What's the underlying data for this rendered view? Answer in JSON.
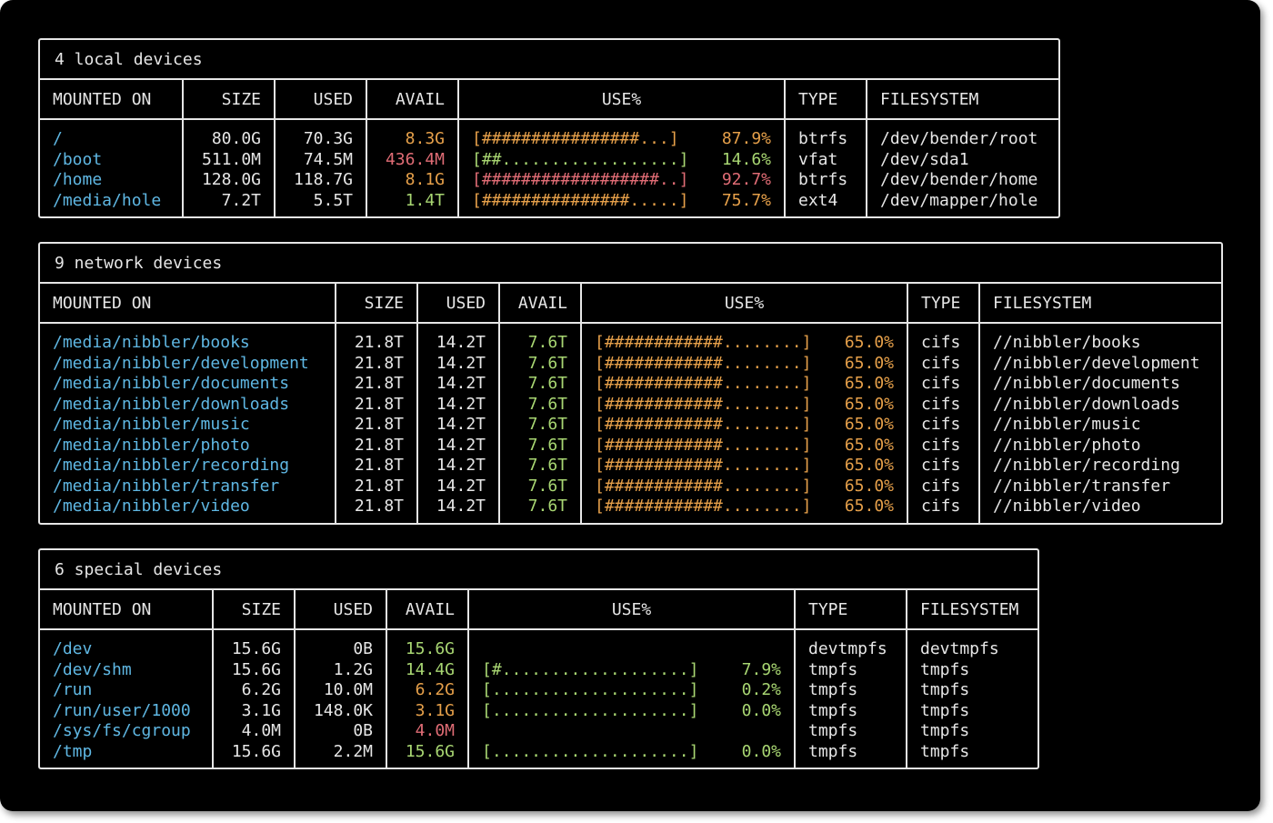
{
  "colors": {
    "background": "#000000",
    "border": "#e6e6e6",
    "mount": "#5fb7e3",
    "ok": "#a8d672",
    "warn": "#e6a04a",
    "critical": "#e06c75"
  },
  "columns": [
    "MOUNTED ON",
    "SIZE",
    "USED",
    "AVAIL",
    "USE%",
    "TYPE",
    "FILESYSTEM"
  ],
  "panels": [
    {
      "title": "4 local devices",
      "rows": [
        {
          "mount": "/",
          "size": "80.0G",
          "used": "70.3G",
          "avail": "8.3G",
          "avail_color": "orange",
          "bar": "[################...]",
          "bar_color": "orange",
          "pct": "87.9%",
          "type": "btrfs",
          "fs": "/dev/bender/root"
        },
        {
          "mount": "/boot",
          "size": "511.0M",
          "used": "74.5M",
          "avail": "436.4M",
          "avail_color": "red",
          "bar": "[##..................]",
          "bar_color": "green",
          "pct": "14.6%",
          "type": "vfat",
          "fs": "/dev/sda1"
        },
        {
          "mount": "/home",
          "size": "128.0G",
          "used": "118.7G",
          "avail": "8.1G",
          "avail_color": "orange",
          "bar": "[##################..]",
          "bar_color": "red",
          "pct": "92.7%",
          "type": "btrfs",
          "fs": "/dev/bender/home"
        },
        {
          "mount": "/media/hole",
          "size": "7.2T",
          "used": "5.5T",
          "avail": "1.4T",
          "avail_color": "green",
          "bar": "[###############.....]",
          "bar_color": "orange",
          "pct": "75.7%",
          "type": "ext4",
          "fs": "/dev/mapper/hole"
        }
      ]
    },
    {
      "title": "9 network devices",
      "rows": [
        {
          "mount": "/media/nibbler/books",
          "size": "21.8T",
          "used": "14.2T",
          "avail": "7.6T",
          "avail_color": "green",
          "bar": "[############........]",
          "bar_color": "orange",
          "pct": "65.0%",
          "type": "cifs",
          "fs": "//nibbler/books"
        },
        {
          "mount": "/media/nibbler/development",
          "size": "21.8T",
          "used": "14.2T",
          "avail": "7.6T",
          "avail_color": "green",
          "bar": "[############........]",
          "bar_color": "orange",
          "pct": "65.0%",
          "type": "cifs",
          "fs": "//nibbler/development"
        },
        {
          "mount": "/media/nibbler/documents",
          "size": "21.8T",
          "used": "14.2T",
          "avail": "7.6T",
          "avail_color": "green",
          "bar": "[############........]",
          "bar_color": "orange",
          "pct": "65.0%",
          "type": "cifs",
          "fs": "//nibbler/documents"
        },
        {
          "mount": "/media/nibbler/downloads",
          "size": "21.8T",
          "used": "14.2T",
          "avail": "7.6T",
          "avail_color": "green",
          "bar": "[############........]",
          "bar_color": "orange",
          "pct": "65.0%",
          "type": "cifs",
          "fs": "//nibbler/downloads"
        },
        {
          "mount": "/media/nibbler/music",
          "size": "21.8T",
          "used": "14.2T",
          "avail": "7.6T",
          "avail_color": "green",
          "bar": "[############........]",
          "bar_color": "orange",
          "pct": "65.0%",
          "type": "cifs",
          "fs": "//nibbler/music"
        },
        {
          "mount": "/media/nibbler/photo",
          "size": "21.8T",
          "used": "14.2T",
          "avail": "7.6T",
          "avail_color": "green",
          "bar": "[############........]",
          "bar_color": "orange",
          "pct": "65.0%",
          "type": "cifs",
          "fs": "//nibbler/photo"
        },
        {
          "mount": "/media/nibbler/recording",
          "size": "21.8T",
          "used": "14.2T",
          "avail": "7.6T",
          "avail_color": "green",
          "bar": "[############........]",
          "bar_color": "orange",
          "pct": "65.0%",
          "type": "cifs",
          "fs": "//nibbler/recording"
        },
        {
          "mount": "/media/nibbler/transfer",
          "size": "21.8T",
          "used": "14.2T",
          "avail": "7.6T",
          "avail_color": "green",
          "bar": "[############........]",
          "bar_color": "orange",
          "pct": "65.0%",
          "type": "cifs",
          "fs": "//nibbler/transfer"
        },
        {
          "mount": "/media/nibbler/video",
          "size": "21.8T",
          "used": "14.2T",
          "avail": "7.6T",
          "avail_color": "green",
          "bar": "[############........]",
          "bar_color": "orange",
          "pct": "65.0%",
          "type": "cifs",
          "fs": "//nibbler/video"
        }
      ]
    },
    {
      "title": "6 special devices",
      "rows": [
        {
          "mount": "/dev",
          "size": "15.6G",
          "used": "0B",
          "avail": "15.6G",
          "avail_color": "green",
          "bar": "",
          "bar_color": "green",
          "pct": "",
          "type": "devtmpfs",
          "fs": "devtmpfs"
        },
        {
          "mount": "/dev/shm",
          "size": "15.6G",
          "used": "1.2G",
          "avail": "14.4G",
          "avail_color": "green",
          "bar": "[#...................]",
          "bar_color": "green",
          "pct": "7.9%",
          "type": "tmpfs",
          "fs": "tmpfs"
        },
        {
          "mount": "/run",
          "size": "6.2G",
          "used": "10.0M",
          "avail": "6.2G",
          "avail_color": "orange",
          "bar": "[....................]",
          "bar_color": "green",
          "pct": "0.2%",
          "type": "tmpfs",
          "fs": "tmpfs"
        },
        {
          "mount": "/run/user/1000",
          "size": "3.1G",
          "used": "148.0K",
          "avail": "3.1G",
          "avail_color": "orange",
          "bar": "[....................]",
          "bar_color": "green",
          "pct": "0.0%",
          "type": "tmpfs",
          "fs": "tmpfs"
        },
        {
          "mount": "/sys/fs/cgroup",
          "size": "4.0M",
          "used": "0B",
          "avail": "4.0M",
          "avail_color": "red",
          "bar": "",
          "bar_color": "green",
          "pct": "",
          "type": "tmpfs",
          "fs": "tmpfs"
        },
        {
          "mount": "/tmp",
          "size": "15.6G",
          "used": "2.2M",
          "avail": "15.6G",
          "avail_color": "green",
          "bar": "[....................]",
          "bar_color": "green",
          "pct": "0.0%",
          "type": "tmpfs",
          "fs": "tmpfs"
        }
      ]
    }
  ]
}
